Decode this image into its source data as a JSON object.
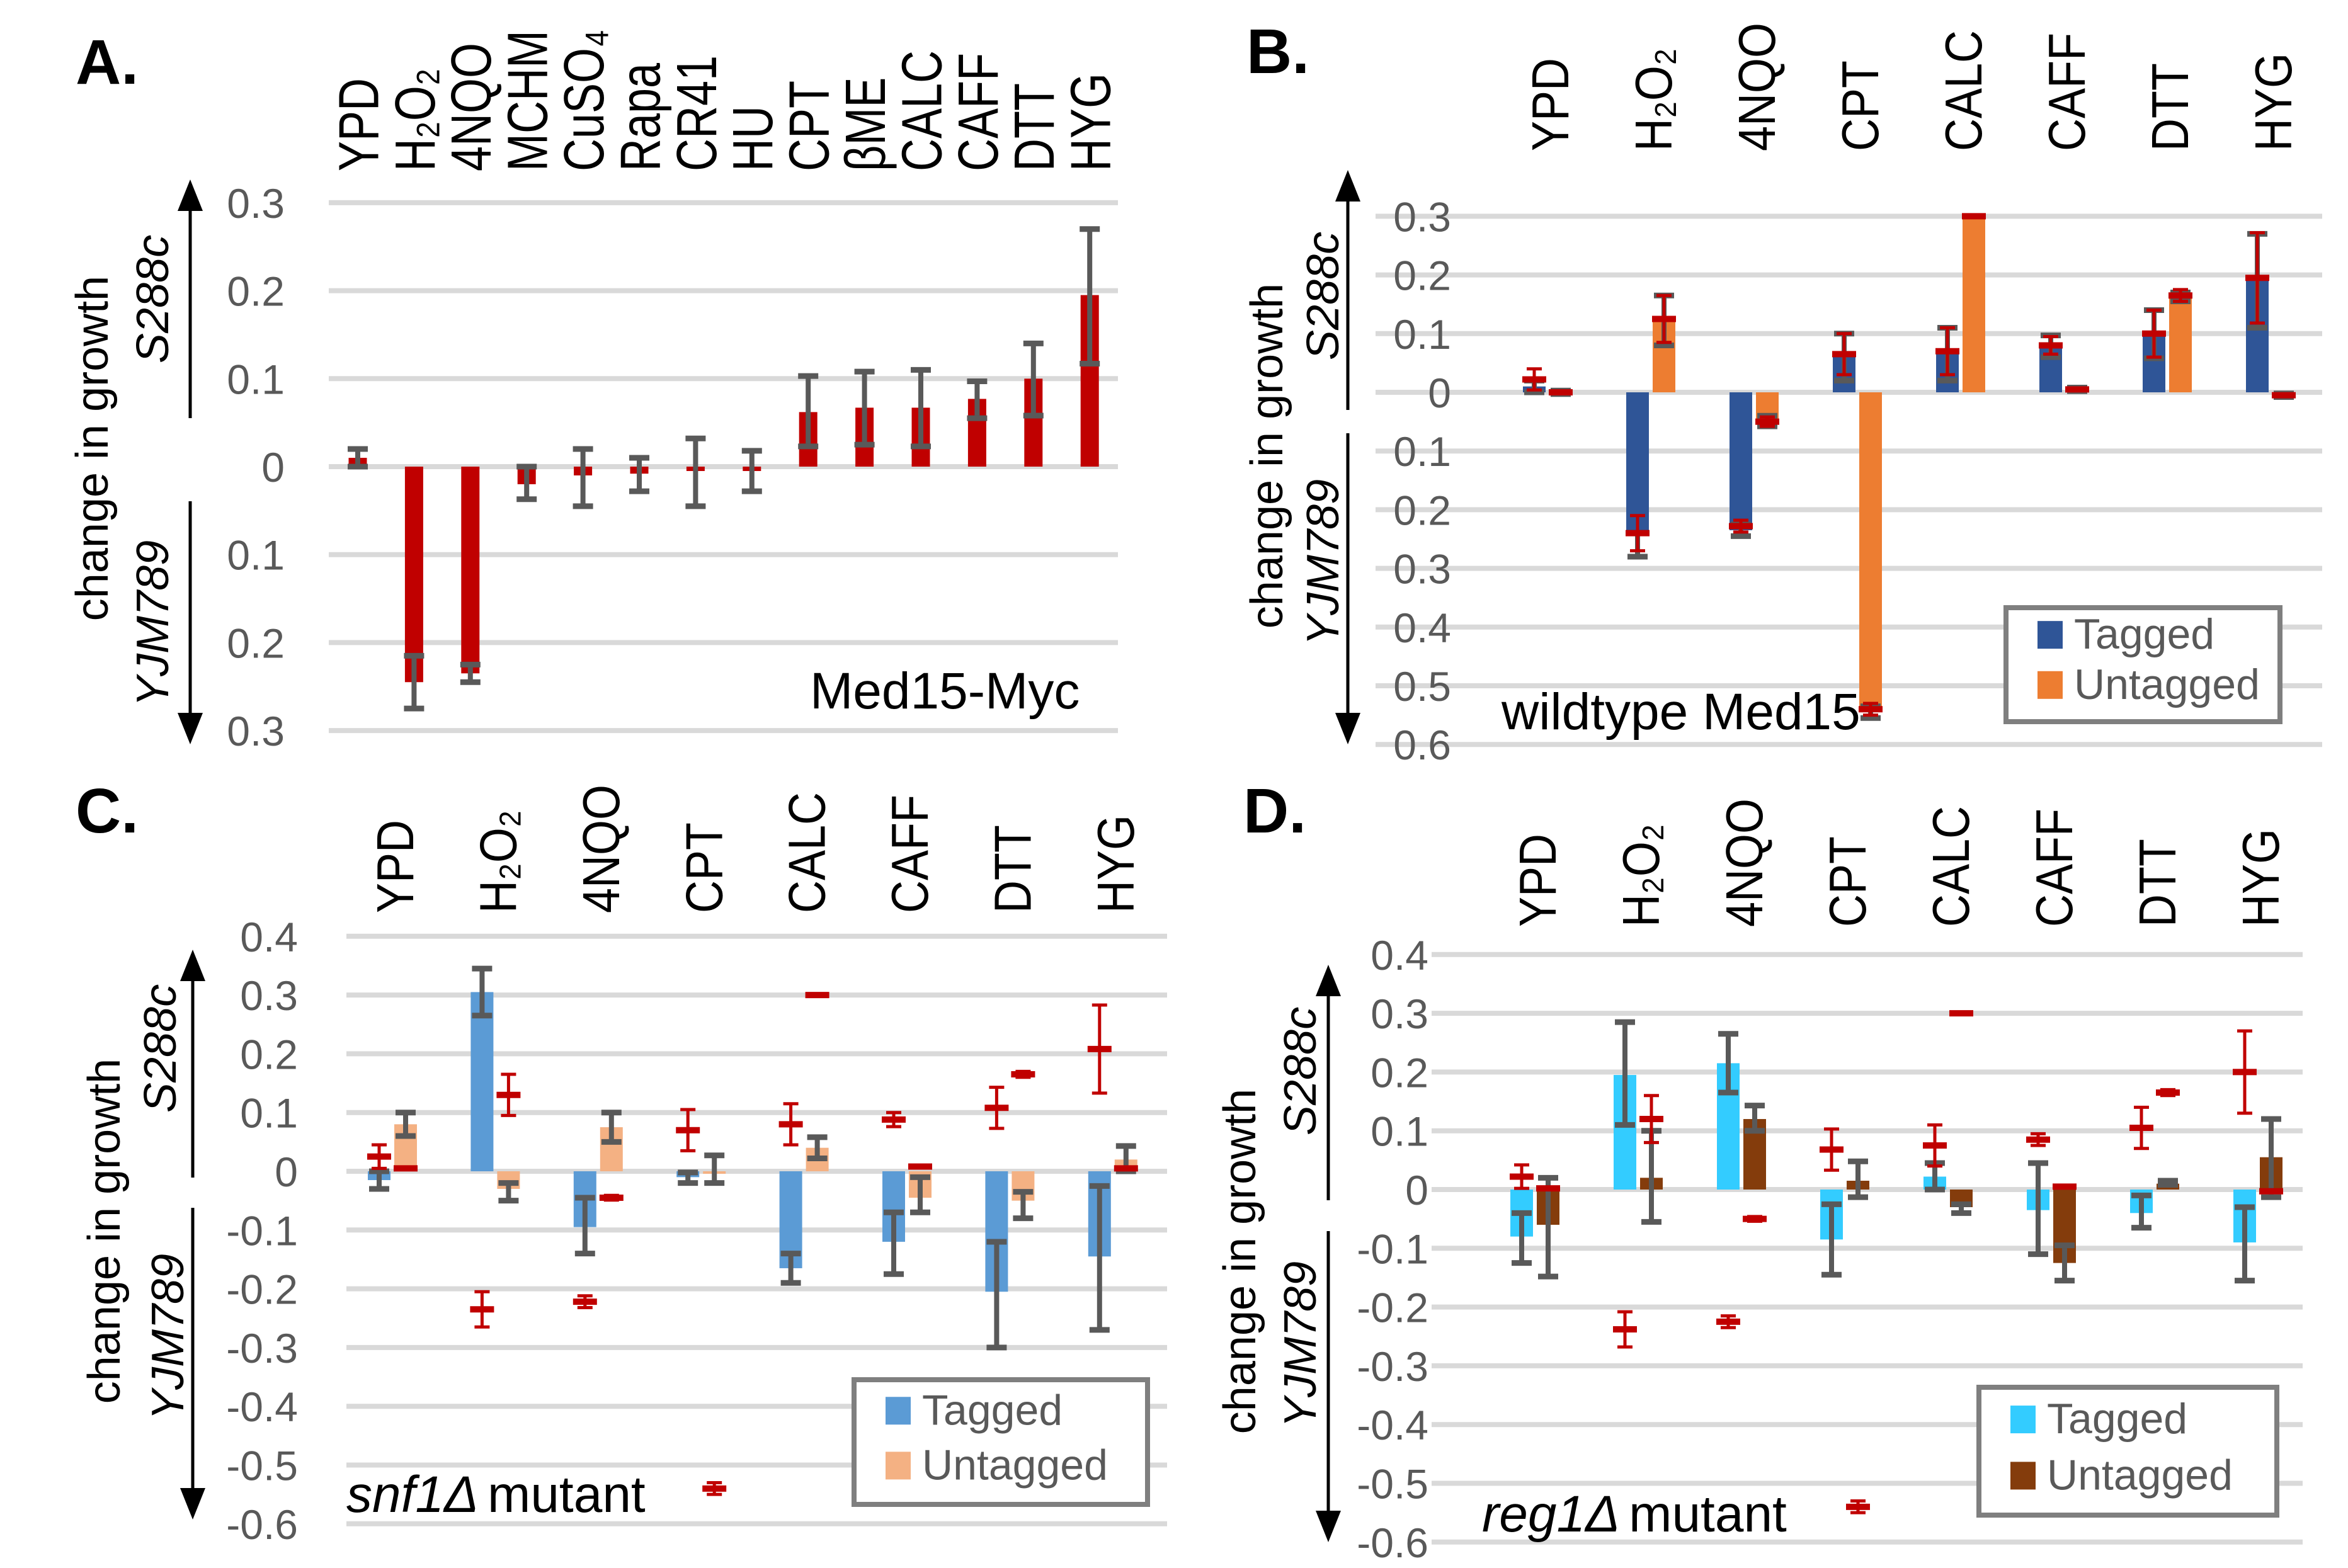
{
  "chart_data": [
    {
      "type": "bar",
      "panel_letter": "A.",
      "categories": [
        "YPD",
        "H₂O₂",
        "4NQO",
        "MCHM",
        "CuSO₄",
        "Rapa",
        "CR41",
        "HU",
        "CPT",
        "βME",
        "CALC",
        "CAFF",
        "DTT",
        "HYG"
      ],
      "ylabel": "change in growth",
      "ylabel_up": "S288c",
      "ylabel_down": "YJM789",
      "yticks": [
        0.3,
        0.2,
        0.1,
        0,
        -0.1,
        -0.2,
        -0.3
      ],
      "ytick_labels": [
        "0.3",
        "0.2",
        "0.1",
        "0",
        "0.1",
        "0.2",
        "0.3"
      ],
      "ylim": [
        -0.3,
        0.3
      ],
      "grid": true,
      "annotation": "Med15-Myc",
      "annotation_italic": "",
      "legend": null,
      "series": [
        {
          "color": "#c00000",
          "values": [
            0.01,
            -0.245,
            -0.235,
            -0.02,
            -0.01,
            -0.008,
            -0.005,
            -0.005,
            0.062,
            0.067,
            0.067,
            0.077,
            0.1,
            0.195
          ],
          "err": [
            [
              0,
              0.02
            ],
            [
              -0.275,
              -0.215
            ],
            [
              -0.245,
              -0.225
            ],
            [
              -0.037,
              0
            ],
            [
              -0.045,
              0.02
            ],
            [
              -0.028,
              0.01
            ],
            [
              -0.045,
              0.032
            ],
            [
              -0.028,
              0.018
            ],
            [
              0.023,
              0.103
            ],
            [
              0.025,
              0.108
            ],
            [
              0.023,
              0.11
            ],
            [
              0.055,
              0.097
            ],
            [
              0.058,
              0.14
            ],
            [
              0.117,
              0.27
            ]
          ]
        }
      ],
      "reference_markers": null
    },
    {
      "type": "bar",
      "panel_letter": "B.",
      "categories": [
        "YPD",
        "H₂O₂",
        "4NQO",
        "CPT",
        "CALC",
        "CAFF",
        "DTT",
        "HYG"
      ],
      "ylabel": "change in growth",
      "ylabel_up": "S288c",
      "ylabel_down": "YJM789",
      "yticks": [
        0.3,
        0.2,
        0.1,
        0,
        -0.1,
        -0.2,
        -0.3,
        -0.4,
        -0.5,
        -0.6
      ],
      "ytick_labels": [
        "0.3",
        "0.2",
        "0.1",
        "0",
        "0.1",
        "0.2",
        "0.3",
        "0.4",
        "0.5",
        "0.6"
      ],
      "ylim": [
        -0.6,
        0.3
      ],
      "grid": true,
      "annotation": "wildtype Med15",
      "annotation_italic": "",
      "legend": "bottom-right",
      "series": [
        {
          "name": "Tagged",
          "color": "#2f5597",
          "values": [
            0.01,
            -0.245,
            -0.235,
            0.065,
            0.07,
            0.08,
            0.1,
            0.195
          ],
          "err": [
            [
              0,
              0.02
            ],
            [
              -0.28,
              -0.24
            ],
            [
              -0.245,
              -0.225
            ],
            [
              0.02,
              0.1
            ],
            [
              0.02,
              0.11
            ],
            [
              0.06,
              0.097
            ],
            [
              0.058,
              0.14
            ],
            [
              0.11,
              0.27
            ]
          ]
        },
        {
          "name": "Untagged",
          "color": "#ed7d31",
          "values": [
            0.0,
            0.125,
            -0.045,
            -0.545,
            0.3,
            0.005,
            0.165,
            -0.005
          ],
          "err": [
            [
              -0.003,
              0.003
            ],
            [
              0.08,
              0.165
            ],
            [
              -0.058,
              -0.04
            ],
            [
              -0.555,
              -0.535
            ],
            [
              0.3,
              0.3
            ],
            [
              0.002,
              0.008
            ],
            [
              0.155,
              0.17
            ],
            [
              -0.008,
              -0.002
            ]
          ]
        }
      ],
      "reference_markers": {
        "color": "#c00000",
        "tagged": {
          "values": [
            0.022,
            -0.24,
            -0.228,
            0.065,
            0.07,
            0.08,
            0.1,
            0.195
          ],
          "err": [
            0.018,
            0.03,
            0.01,
            0.035,
            0.04,
            0.015,
            0.04,
            0.077
          ]
        },
        "untagged": {
          "values": [
            0.0,
            0.125,
            -0.05,
            -0.54,
            0.3,
            0.005,
            0.165,
            -0.005
          ],
          "err": [
            0,
            0.04,
            0.008,
            0.01,
            0,
            0,
            0.01,
            0
          ]
        }
      }
    },
    {
      "type": "bar",
      "panel_letter": "C.",
      "categories": [
        "YPD",
        "H₂O₂",
        "4NQO",
        "CPT",
        "CALC",
        "CAFF",
        "DTT",
        "HYG"
      ],
      "ylabel": "change in growth",
      "ylabel_up": "S288c",
      "ylabel_down": "YJM789",
      "yticks": [
        0.4,
        0.3,
        0.2,
        0.1,
        0,
        -0.1,
        -0.2,
        -0.3,
        -0.4,
        -0.5,
        -0.6
      ],
      "ytick_labels": [
        "0.4",
        "0.3",
        "0.2",
        "0.1",
        "0",
        "-0.1",
        "-0.2",
        "-0.3",
        "-0.4",
        "-0.5",
        "-0.6"
      ],
      "ylim": [
        -0.6,
        0.4
      ],
      "grid": true,
      "annotation": "mutant",
      "annotation_italic": "snf1Δ",
      "legend": "bottom-right",
      "series": [
        {
          "name": "Tagged",
          "color": "#5b9bd5",
          "values": [
            -0.015,
            0.305,
            -0.095,
            -0.01,
            -0.165,
            -0.12,
            -0.205,
            -0.145
          ],
          "err": [
            [
              -0.03,
              0
            ],
            [
              0.265,
              0.345
            ],
            [
              -0.14,
              -0.045
            ],
            [
              -0.02,
              -0.002
            ],
            [
              -0.19,
              -0.14
            ],
            [
              -0.175,
              -0.07
            ],
            [
              -0.3,
              -0.12
            ],
            [
              -0.27,
              -0.025
            ]
          ]
        },
        {
          "name": "Untagged",
          "color": "#f4b183",
          "values": [
            0.08,
            -0.03,
            0.075,
            0.0,
            0.04,
            -0.045,
            -0.05,
            0.02
          ],
          "err": [
            [
              0.06,
              0.1
            ],
            [
              -0.05,
              -0.02
            ],
            [
              0.05,
              0.1
            ],
            [
              -0.02,
              0.027
            ],
            [
              0.022,
              0.058
            ],
            [
              -0.07,
              -0.01
            ],
            [
              -0.08,
              -0.035
            ],
            [
              0,
              0.043
            ]
          ]
        }
      ],
      "reference_markers": {
        "color": "#c00000",
        "tagged": {
          "values": [
            0.025,
            -0.235,
            -0.222,
            0.07,
            0.08,
            0.088,
            0.108,
            0.208
          ],
          "err": [
            0.02,
            0.03,
            0.01,
            0.035,
            0.035,
            0.012,
            0.035,
            0.075
          ]
        },
        "untagged": {
          "values": [
            0.005,
            0.13,
            -0.045,
            -0.54,
            0.3,
            0.008,
            0.165,
            0.005
          ],
          "err": [
            0,
            0.035,
            0.004,
            0.01,
            0,
            0,
            0.005,
            0
          ]
        }
      }
    },
    {
      "type": "bar",
      "panel_letter": "D.",
      "categories": [
        "YPD",
        "H₂O₂",
        "4NQO",
        "CPT",
        "CALC",
        "CAFF",
        "DTT",
        "HYG"
      ],
      "ylabel": "change in growth",
      "ylabel_up": "S288c",
      "ylabel_down": "YJM789",
      "yticks": [
        0.4,
        0.3,
        0.2,
        0.1,
        0,
        -0.1,
        -0.2,
        -0.3,
        -0.4,
        -0.5,
        -0.6
      ],
      "ytick_labels": [
        "0.4",
        "0.3",
        "0.2",
        "0.1",
        "0",
        "-0.1",
        "-0.2",
        "-0.3",
        "-0.4",
        "-0.5",
        "-0.6"
      ],
      "ylim": [
        -0.6,
        0.4
      ],
      "grid": true,
      "annotation": "mutant",
      "annotation_italic": "reg1Δ",
      "legend": "bottom-right",
      "series": [
        {
          "name": "Tagged",
          "color": "#33ccff",
          "values": [
            -0.08,
            0.195,
            0.215,
            -0.085,
            0.022,
            -0.035,
            -0.04,
            -0.09
          ],
          "err": [
            [
              -0.125,
              -0.04
            ],
            [
              0.11,
              0.285
            ],
            [
              0.165,
              0.265
            ],
            [
              -0.145,
              -0.025
            ],
            [
              0,
              0.045
            ],
            [
              -0.11,
              0.045
            ],
            [
              -0.065,
              -0.01
            ],
            [
              -0.155,
              -0.03
            ]
          ]
        },
        {
          "name": "Untagged",
          "color": "#843c0c",
          "values": [
            -0.06,
            0.02,
            0.12,
            0.015,
            -0.03,
            -0.125,
            0.01,
            0.055
          ],
          "err": [
            [
              -0.148,
              0.02
            ],
            [
              -0.055,
              0.1
            ],
            [
              0.1,
              0.143
            ],
            [
              -0.013,
              0.048
            ],
            [
              -0.04,
              -0.025
            ],
            [
              -0.155,
              -0.095
            ],
            [
              0.008,
              0.015
            ],
            [
              -0.013,
              0.12
            ]
          ]
        }
      ],
      "reference_markers": {
        "color": "#c00000",
        "tagged": {
          "values": [
            0.022,
            -0.238,
            -0.225,
            0.068,
            0.075,
            0.085,
            0.105,
            0.2
          ],
          "err": [
            0.02,
            0.03,
            0.01,
            0.035,
            0.035,
            0.01,
            0.035,
            0.07
          ]
        },
        "untagged": {
          "values": [
            0.002,
            0.12,
            -0.05,
            -0.54,
            0.3,
            0.005,
            0.165,
            -0.003
          ],
          "err": [
            0,
            0.04,
            0.004,
            0.01,
            0,
            0,
            0.005,
            0
          ]
        }
      }
    }
  ]
}
